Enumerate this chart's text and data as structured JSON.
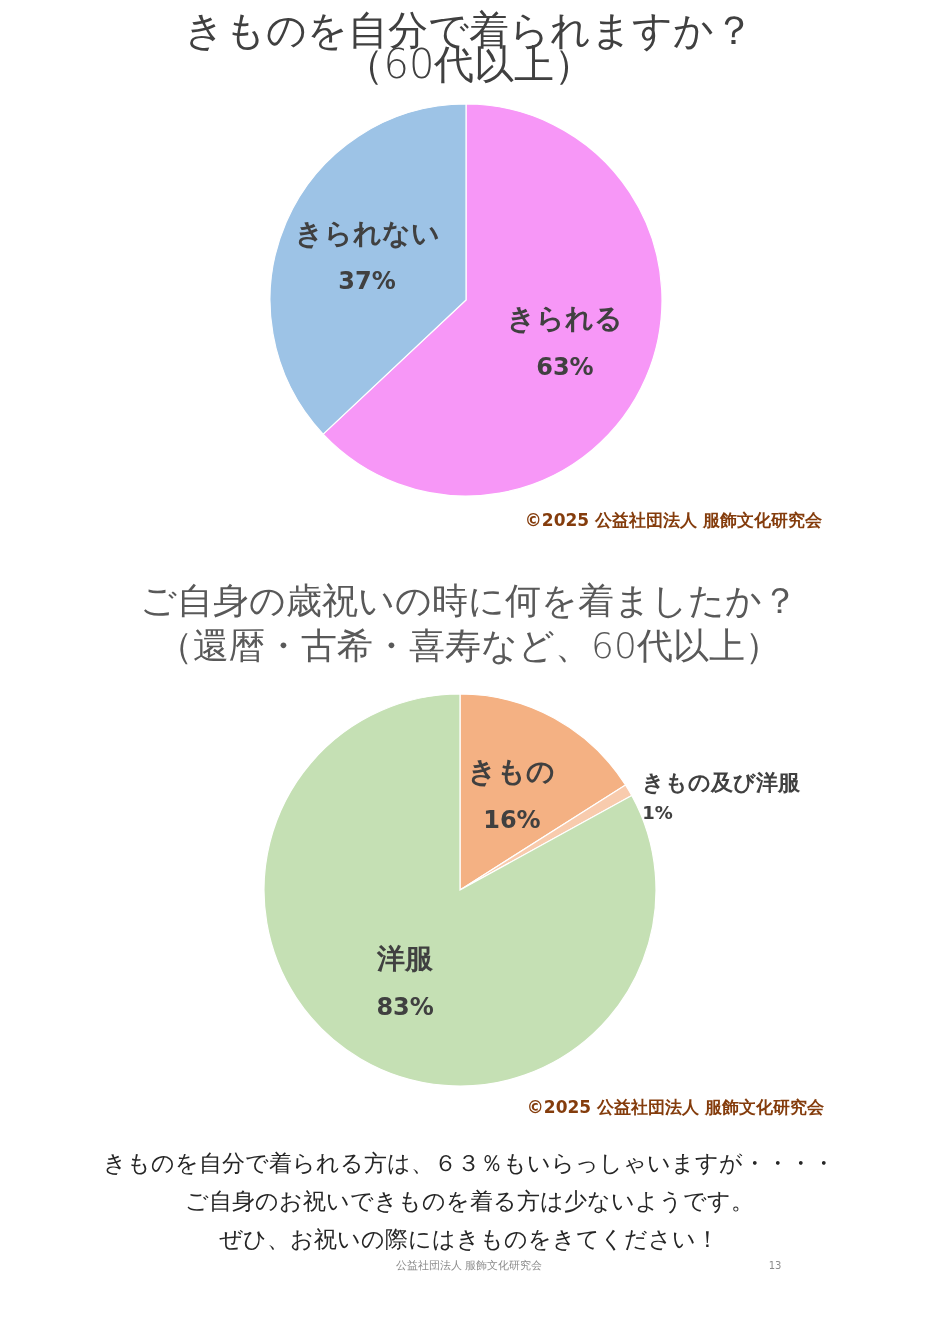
{
  "chart_data": [
    {
      "type": "pie",
      "title": "きものを自分で着られますか？",
      "subtitle": "（60代以上）",
      "categories": [
        "きられる",
        "きられない"
      ],
      "values": [
        63,
        37
      ],
      "colors": [
        "#f797f7",
        "#9dc3e6"
      ],
      "value_labels": [
        "63%",
        "37%"
      ],
      "annotations": [
        "©2025 公益社団法人 服飾文化研究会"
      ]
    },
    {
      "type": "pie",
      "title": "ご自身の歳祝いの時に何を着ましたか？",
      "subtitle": "（還暦・古希・喜寿など、60代以上）",
      "categories": [
        "きもの",
        "きもの及び洋服",
        "洋服"
      ],
      "values": [
        16,
        1,
        83
      ],
      "colors": [
        "#f4b183",
        "#f8cbad",
        "#c5e0b4"
      ],
      "value_labels": [
        "16%",
        "1%",
        "83%"
      ],
      "annotations": [
        "©2025 公益社団法人 服飾文化研究会",
        "きものを自分で着られる方は、６３％もいらっしゃいますが・・・・",
        "ご自身のお祝いできものを着る方は少ないようです。",
        "ぜひ、お祝いの際にはきものをきてください！",
        "公益社団法人 服飾文化研究会",
        "13"
      ]
    }
  ]
}
